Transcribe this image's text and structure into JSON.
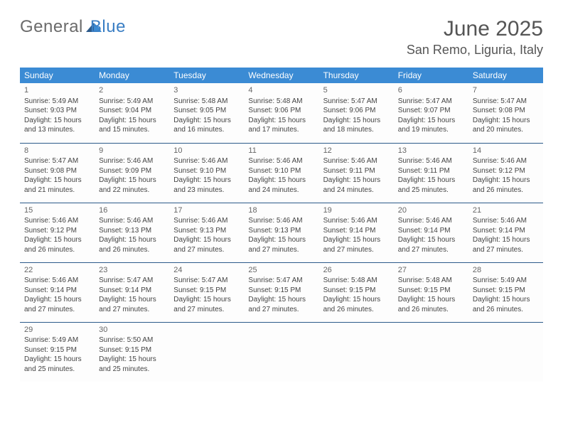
{
  "logo": {
    "general": "General",
    "blue": "Blue"
  },
  "title": "June 2025",
  "location": "San Remo, Liguria, Italy",
  "colors": {
    "header_bg": "#3b8bd4",
    "header_text": "#ffffff",
    "row_border": "#2c5a8a",
    "cell_text": "#444444",
    "day_num": "#666666",
    "empty_bg": "#f3f3f3",
    "logo_general": "#6b6b6b",
    "logo_blue": "#3b7fc4",
    "title_color": "#555555"
  },
  "weekdays": [
    "Sunday",
    "Monday",
    "Tuesday",
    "Wednesday",
    "Thursday",
    "Friday",
    "Saturday"
  ],
  "weeks": [
    [
      {
        "day": "1",
        "sunrise": "Sunrise: 5:49 AM",
        "sunset": "Sunset: 9:03 PM",
        "daylight": "Daylight: 15 hours and 13 minutes."
      },
      {
        "day": "2",
        "sunrise": "Sunrise: 5:49 AM",
        "sunset": "Sunset: 9:04 PM",
        "daylight": "Daylight: 15 hours and 15 minutes."
      },
      {
        "day": "3",
        "sunrise": "Sunrise: 5:48 AM",
        "sunset": "Sunset: 9:05 PM",
        "daylight": "Daylight: 15 hours and 16 minutes."
      },
      {
        "day": "4",
        "sunrise": "Sunrise: 5:48 AM",
        "sunset": "Sunset: 9:06 PM",
        "daylight": "Daylight: 15 hours and 17 minutes."
      },
      {
        "day": "5",
        "sunrise": "Sunrise: 5:47 AM",
        "sunset": "Sunset: 9:06 PM",
        "daylight": "Daylight: 15 hours and 18 minutes."
      },
      {
        "day": "6",
        "sunrise": "Sunrise: 5:47 AM",
        "sunset": "Sunset: 9:07 PM",
        "daylight": "Daylight: 15 hours and 19 minutes."
      },
      {
        "day": "7",
        "sunrise": "Sunrise: 5:47 AM",
        "sunset": "Sunset: 9:08 PM",
        "daylight": "Daylight: 15 hours and 20 minutes."
      }
    ],
    [
      {
        "day": "8",
        "sunrise": "Sunrise: 5:47 AM",
        "sunset": "Sunset: 9:08 PM",
        "daylight": "Daylight: 15 hours and 21 minutes."
      },
      {
        "day": "9",
        "sunrise": "Sunrise: 5:46 AM",
        "sunset": "Sunset: 9:09 PM",
        "daylight": "Daylight: 15 hours and 22 minutes."
      },
      {
        "day": "10",
        "sunrise": "Sunrise: 5:46 AM",
        "sunset": "Sunset: 9:10 PM",
        "daylight": "Daylight: 15 hours and 23 minutes."
      },
      {
        "day": "11",
        "sunrise": "Sunrise: 5:46 AM",
        "sunset": "Sunset: 9:10 PM",
        "daylight": "Daylight: 15 hours and 24 minutes."
      },
      {
        "day": "12",
        "sunrise": "Sunrise: 5:46 AM",
        "sunset": "Sunset: 9:11 PM",
        "daylight": "Daylight: 15 hours and 24 minutes."
      },
      {
        "day": "13",
        "sunrise": "Sunrise: 5:46 AM",
        "sunset": "Sunset: 9:11 PM",
        "daylight": "Daylight: 15 hours and 25 minutes."
      },
      {
        "day": "14",
        "sunrise": "Sunrise: 5:46 AM",
        "sunset": "Sunset: 9:12 PM",
        "daylight": "Daylight: 15 hours and 26 minutes."
      }
    ],
    [
      {
        "day": "15",
        "sunrise": "Sunrise: 5:46 AM",
        "sunset": "Sunset: 9:12 PM",
        "daylight": "Daylight: 15 hours and 26 minutes."
      },
      {
        "day": "16",
        "sunrise": "Sunrise: 5:46 AM",
        "sunset": "Sunset: 9:13 PM",
        "daylight": "Daylight: 15 hours and 26 minutes."
      },
      {
        "day": "17",
        "sunrise": "Sunrise: 5:46 AM",
        "sunset": "Sunset: 9:13 PM",
        "daylight": "Daylight: 15 hours and 27 minutes."
      },
      {
        "day": "18",
        "sunrise": "Sunrise: 5:46 AM",
        "sunset": "Sunset: 9:13 PM",
        "daylight": "Daylight: 15 hours and 27 minutes."
      },
      {
        "day": "19",
        "sunrise": "Sunrise: 5:46 AM",
        "sunset": "Sunset: 9:14 PM",
        "daylight": "Daylight: 15 hours and 27 minutes."
      },
      {
        "day": "20",
        "sunrise": "Sunrise: 5:46 AM",
        "sunset": "Sunset: 9:14 PM",
        "daylight": "Daylight: 15 hours and 27 minutes."
      },
      {
        "day": "21",
        "sunrise": "Sunrise: 5:46 AM",
        "sunset": "Sunset: 9:14 PM",
        "daylight": "Daylight: 15 hours and 27 minutes."
      }
    ],
    [
      {
        "day": "22",
        "sunrise": "Sunrise: 5:46 AM",
        "sunset": "Sunset: 9:14 PM",
        "daylight": "Daylight: 15 hours and 27 minutes."
      },
      {
        "day": "23",
        "sunrise": "Sunrise: 5:47 AM",
        "sunset": "Sunset: 9:14 PM",
        "daylight": "Daylight: 15 hours and 27 minutes."
      },
      {
        "day": "24",
        "sunrise": "Sunrise: 5:47 AM",
        "sunset": "Sunset: 9:15 PM",
        "daylight": "Daylight: 15 hours and 27 minutes."
      },
      {
        "day": "25",
        "sunrise": "Sunrise: 5:47 AM",
        "sunset": "Sunset: 9:15 PM",
        "daylight": "Daylight: 15 hours and 27 minutes."
      },
      {
        "day": "26",
        "sunrise": "Sunrise: 5:48 AM",
        "sunset": "Sunset: 9:15 PM",
        "daylight": "Daylight: 15 hours and 26 minutes."
      },
      {
        "day": "27",
        "sunrise": "Sunrise: 5:48 AM",
        "sunset": "Sunset: 9:15 PM",
        "daylight": "Daylight: 15 hours and 26 minutes."
      },
      {
        "day": "28",
        "sunrise": "Sunrise: 5:49 AM",
        "sunset": "Sunset: 9:15 PM",
        "daylight": "Daylight: 15 hours and 26 minutes."
      }
    ],
    [
      {
        "day": "29",
        "sunrise": "Sunrise: 5:49 AM",
        "sunset": "Sunset: 9:15 PM",
        "daylight": "Daylight: 15 hours and 25 minutes."
      },
      {
        "day": "30",
        "sunrise": "Sunrise: 5:50 AM",
        "sunset": "Sunset: 9:15 PM",
        "daylight": "Daylight: 15 hours and 25 minutes."
      },
      null,
      null,
      null,
      null,
      null
    ]
  ]
}
